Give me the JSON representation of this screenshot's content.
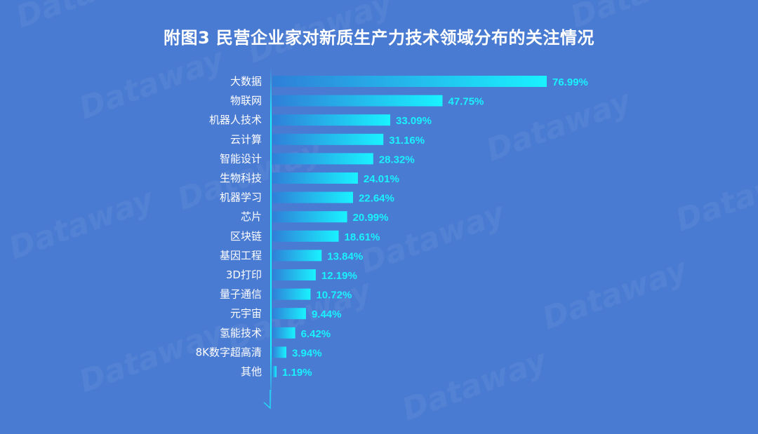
{
  "title": "附图3  民营企业家对新质生产力技术领域分布的关注情况",
  "watermark": "Dataway",
  "colors": {
    "background": "#4a7bd2",
    "bar_start": "#2f7fd8",
    "bar_end": "#19f2ff",
    "value_label": "#19f2ff",
    "axis": "#19f2ff"
  },
  "chart_data": {
    "type": "bar",
    "orientation": "horizontal",
    "categories": [
      "大数据",
      "物联网",
      "机器人技术",
      "云计算",
      "智能设计",
      "生物科技",
      "机器学习",
      "芯片",
      "区块链",
      "基因工程",
      "3D打印",
      "量子通信",
      "元宇宙",
      "氢能技术",
      "8K数字超高清",
      "其他"
    ],
    "values": [
      76.99,
      47.75,
      33.09,
      31.16,
      28.32,
      24.01,
      22.64,
      20.99,
      18.61,
      13.84,
      12.19,
      10.72,
      9.44,
      6.42,
      3.94,
      1.19
    ],
    "labels": [
      "76.99%",
      "47.75%",
      "33.09%",
      "31.16%",
      "28.32%",
      "24.01%",
      "22.64%",
      "20.99%",
      "18.61%",
      "13.84%",
      "12.19%",
      "10.72%",
      "9.44%",
      "6.42%",
      "3.94%",
      "1.19%"
    ],
    "xlim": [
      0,
      76.99
    ],
    "grid": false,
    "legend": "none"
  }
}
